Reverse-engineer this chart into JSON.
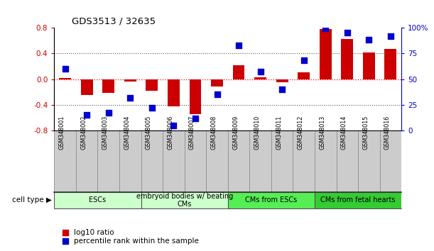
{
  "title": "GDS3513 / 32635",
  "samples": [
    "GSM348001",
    "GSM348002",
    "GSM348003",
    "GSM348004",
    "GSM348005",
    "GSM348006",
    "GSM348007",
    "GSM348008",
    "GSM348009",
    "GSM348010",
    "GSM348011",
    "GSM348012",
    "GSM348013",
    "GSM348014",
    "GSM348015",
    "GSM348016"
  ],
  "log10_ratio": [
    0.02,
    -0.25,
    -0.22,
    -0.04,
    -0.18,
    -0.42,
    -0.55,
    -0.12,
    0.22,
    0.03,
    -0.05,
    0.1,
    0.78,
    0.62,
    0.41,
    0.47
  ],
  "percentile_rank": [
    60,
    15,
    17,
    32,
    22,
    5,
    12,
    35,
    83,
    57,
    40,
    68,
    99,
    95,
    88,
    92
  ],
  "cell_types": [
    {
      "label": "ESCs",
      "start": 0,
      "end": 4,
      "color": "#ccffcc"
    },
    {
      "label": "embryoid bodies w/ beating\nCMs",
      "start": 4,
      "end": 8,
      "color": "#ccffcc"
    },
    {
      "label": "CMs from ESCs",
      "start": 8,
      "end": 12,
      "color": "#55ee55"
    },
    {
      "label": "CMs from fetal hearts",
      "start": 12,
      "end": 16,
      "color": "#33cc33"
    }
  ],
  "bar_color": "#cc0000",
  "dot_color": "#0000cc",
  "ylim_left": [
    -0.8,
    0.8
  ],
  "ylim_right": [
    0,
    100
  ],
  "yticks_left": [
    -0.8,
    -0.4,
    0.0,
    0.4,
    0.8
  ],
  "yticks_right": [
    0,
    25,
    50,
    75,
    100
  ],
  "ytick_labels_right": [
    "0",
    "25",
    "50",
    "75",
    "100%"
  ],
  "background_color": "#ffffff",
  "bar_width": 0.55,
  "dot_size": 40,
  "legend_items": [
    {
      "label": "log10 ratio",
      "color": "#cc0000"
    },
    {
      "label": "percentile rank within the sample",
      "color": "#0000cc"
    }
  ],
  "sample_box_color": "#cccccc",
  "sample_box_edge": "#888888"
}
